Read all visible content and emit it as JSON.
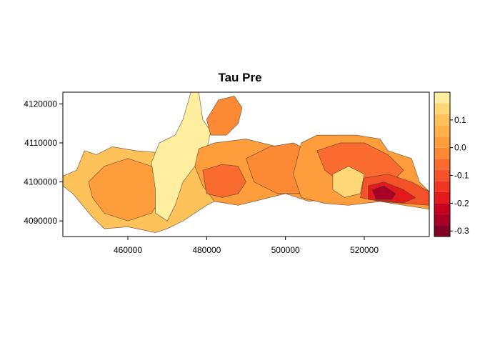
{
  "chart_data": {
    "type": "heatmap",
    "title": "Tau  Pre",
    "xlabel": "",
    "ylabel": "",
    "xlim": [
      443500,
      536500
    ],
    "ylim": [
      4086000,
      4123000
    ],
    "x_ticks": [
      460000,
      480000,
      500000,
      520000
    ],
    "x_tick_labels": [
      "460000",
      "480000",
      "500000",
      "520000"
    ],
    "y_ticks": [
      4090000,
      4100000,
      4110000,
      4120000
    ],
    "y_tick_labels": [
      "4090000",
      "4100000",
      "4110000",
      "4120000"
    ],
    "colorbar": {
      "range": [
        -0.32,
        0.2
      ],
      "ticks": [
        -0.3,
        -0.2,
        -0.1,
        0.0,
        0.1
      ],
      "tick_labels": [
        "-0.3",
        "-0.2",
        "-0.1",
        "0.0",
        "0.1"
      ],
      "bins": [
        {
          "from": -0.32,
          "to": -0.28,
          "color": "#800026"
        },
        {
          "from": -0.28,
          "to": -0.24,
          "color": "#a80026"
        },
        {
          "from": -0.24,
          "to": -0.2,
          "color": "#c6001f"
        },
        {
          "from": -0.2,
          "to": -0.16,
          "color": "#e31a1c"
        },
        {
          "from": -0.16,
          "to": -0.12,
          "color": "#f03523"
        },
        {
          "from": -0.12,
          "to": -0.08,
          "color": "#f5522a"
        },
        {
          "from": -0.08,
          "to": -0.04,
          "color": "#f96b2f"
        },
        {
          "from": -0.04,
          "to": 0.0,
          "color": "#fc8a34"
        },
        {
          "from": 0.0,
          "to": 0.04,
          "color": "#fd9d3c"
        },
        {
          "from": 0.04,
          "to": 0.08,
          "color": "#feb04a"
        },
        {
          "from": 0.08,
          "to": 0.12,
          "color": "#fec25a"
        },
        {
          "from": 0.12,
          "to": 0.16,
          "color": "#fed876"
        },
        {
          "from": 0.16,
          "to": 0.2,
          "color": "#ffeea0"
        }
      ]
    },
    "regions": [
      {
        "value": 0.1,
        "points": [
          [
            443500,
            4101500
          ],
          [
            447000,
            4103000
          ],
          [
            449000,
            4108000
          ],
          [
            452000,
            4107000
          ],
          [
            456000,
            4109000
          ],
          [
            462000,
            4108000
          ],
          [
            468000,
            4107500
          ],
          [
            472000,
            4108000
          ],
          [
            474000,
            4111000
          ],
          [
            480000,
            4110000
          ],
          [
            482000,
            4106000
          ],
          [
            488000,
            4105000
          ],
          [
            494000,
            4106000
          ],
          [
            500000,
            4104000
          ],
          [
            502000,
            4097000
          ],
          [
            494000,
            4097000
          ],
          [
            488000,
            4096500
          ],
          [
            484000,
            4096000
          ],
          [
            480000,
            4094000
          ],
          [
            474000,
            4090000
          ],
          [
            470000,
            4088000
          ],
          [
            467000,
            4087000
          ],
          [
            460000,
            4088500
          ],
          [
            454000,
            4088000
          ],
          [
            451000,
            4091000
          ],
          [
            446000,
            4097000
          ],
          [
            443500,
            4099000
          ]
        ]
      },
      {
        "value": 0.02,
        "points": [
          [
            450000,
            4100000
          ],
          [
            454000,
            4104000
          ],
          [
            460000,
            4106000
          ],
          [
            466000,
            4104000
          ],
          [
            470000,
            4098000
          ],
          [
            466000,
            4092000
          ],
          [
            460000,
            4090000
          ],
          [
            454000,
            4092000
          ],
          [
            451000,
            4096000
          ]
        ]
      },
      {
        "value": 0.18,
        "points": [
          [
            466000,
            4105000
          ],
          [
            468000,
            4110000
          ],
          [
            472000,
            4112000
          ],
          [
            474000,
            4116000
          ],
          [
            476000,
            4123000
          ],
          [
            478000,
            4123000
          ],
          [
            479000,
            4116000
          ],
          [
            481000,
            4113000
          ],
          [
            480000,
            4108000
          ],
          [
            477000,
            4104000
          ],
          [
            474000,
            4100000
          ],
          [
            472000,
            4094000
          ],
          [
            470000,
            4090000
          ],
          [
            467000,
            4092000
          ],
          [
            467000,
            4098000
          ]
        ]
      },
      {
        "value": 0.0,
        "points": [
          [
            478000,
            4108500
          ],
          [
            482000,
            4110000
          ],
          [
            490000,
            4111000
          ],
          [
            498000,
            4109000
          ],
          [
            504000,
            4108000
          ],
          [
            508000,
            4107000
          ],
          [
            512000,
            4104000
          ],
          [
            515000,
            4100000
          ],
          [
            512000,
            4096000
          ],
          [
            506000,
            4095000
          ],
          [
            500000,
            4097000
          ],
          [
            494000,
            4095500
          ],
          [
            488000,
            4094000
          ],
          [
            482000,
            4095000
          ],
          [
            479000,
            4099000
          ],
          [
            477000,
            4104000
          ]
        ]
      },
      {
        "value": -0.06,
        "points": [
          [
            479000,
            4103000
          ],
          [
            484000,
            4104500
          ],
          [
            488000,
            4104000
          ],
          [
            490000,
            4100000
          ],
          [
            488000,
            4097000
          ],
          [
            484000,
            4096000
          ],
          [
            480000,
            4097000
          ]
        ]
      },
      {
        "value": -0.02,
        "points": [
          [
            480000,
            4116000
          ],
          [
            483000,
            4121000
          ],
          [
            487000,
            4122000
          ],
          [
            489000,
            4119000
          ],
          [
            488000,
            4115000
          ],
          [
            485000,
            4112000
          ],
          [
            481000,
            4112000
          ]
        ]
      },
      {
        "value": -0.04,
        "points": [
          [
            490000,
            4106000
          ],
          [
            496000,
            4109000
          ],
          [
            502000,
            4110000
          ],
          [
            506000,
            4108000
          ],
          [
            508000,
            4102000
          ],
          [
            504000,
            4097000
          ],
          [
            498000,
            4097000
          ],
          [
            492000,
            4100000
          ]
        ]
      },
      {
        "value": 0.0,
        "points": [
          [
            504000,
            4110000
          ],
          [
            508000,
            4112000
          ],
          [
            514000,
            4112000
          ],
          [
            518000,
            4112000
          ],
          [
            524000,
            4111000
          ],
          [
            526000,
            4108000
          ],
          [
            532000,
            4106000
          ],
          [
            534000,
            4100000
          ],
          [
            536500,
            4097500
          ],
          [
            536500,
            4093000
          ],
          [
            530000,
            4094000
          ],
          [
            524000,
            4095000
          ],
          [
            516000,
            4094000
          ],
          [
            510000,
            4094500
          ],
          [
            504000,
            4096000
          ],
          [
            502000,
            4102000
          ]
        ]
      },
      {
        "value": -0.06,
        "points": [
          [
            508000,
            4108000
          ],
          [
            514000,
            4110000
          ],
          [
            520000,
            4110000
          ],
          [
            526000,
            4107000
          ],
          [
            530000,
            4103000
          ],
          [
            526000,
            4099000
          ],
          [
            520000,
            4098000
          ],
          [
            514000,
            4100000
          ],
          [
            510000,
            4103000
          ]
        ]
      },
      {
        "value": 0.14,
        "points": [
          [
            512000,
            4102000
          ],
          [
            516000,
            4104000
          ],
          [
            520000,
            4102000
          ],
          [
            519000,
            4097000
          ],
          [
            515000,
            4096000
          ],
          [
            512000,
            4098000
          ]
        ]
      },
      {
        "value": -0.1,
        "points": [
          [
            520000,
            4101000
          ],
          [
            526000,
            4102000
          ],
          [
            532000,
            4100000
          ],
          [
            536500,
            4097500
          ],
          [
            536500,
            4094000
          ],
          [
            530000,
            4094500
          ],
          [
            524000,
            4095000
          ],
          [
            519000,
            4096000
          ]
        ]
      },
      {
        "value": -0.18,
        "points": [
          [
            521000,
            4099000
          ],
          [
            525000,
            4100000
          ],
          [
            530000,
            4098000
          ],
          [
            533000,
            4096000
          ],
          [
            530000,
            4094600
          ],
          [
            526000,
            4095000
          ],
          [
            521000,
            4095500
          ]
        ]
      },
      {
        "value": -0.27,
        "points": [
          [
            522000,
            4098000
          ],
          [
            525000,
            4099000
          ],
          [
            528000,
            4097000
          ],
          [
            527000,
            4095500
          ],
          [
            523000,
            4095500
          ]
        ]
      }
    ]
  }
}
